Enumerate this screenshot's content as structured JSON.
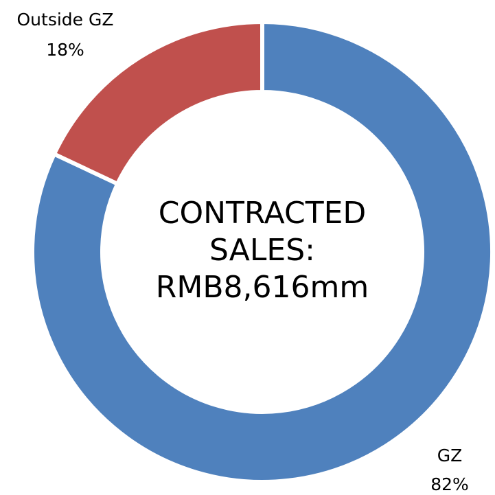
{
  "chart_data": {
    "type": "donut",
    "categories": [
      "GZ",
      "Outside GZ"
    ],
    "values": [
      82,
      18
    ],
    "value_labels": [
      "82%",
      "18%"
    ],
    "colors": [
      "#4f81bd",
      "#c0504d"
    ],
    "center_text": [
      "CONTRACTED",
      "SALES:",
      "RMB8,616mm"
    ]
  }
}
